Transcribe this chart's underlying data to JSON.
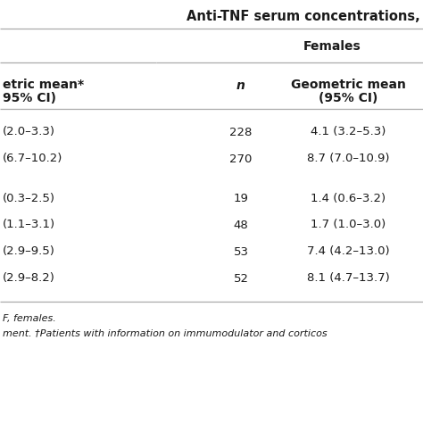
{
  "title": "Anti-TNF serum concentrations,",
  "col_header_top": "Females",
  "col1_hdr_line1": "etric mean*",
  "col1_hdr_line2": "95% CI)",
  "col2_hdr": "n",
  "col3_hdr_line1": "Geometric mean",
  "col3_hdr_line2": "(95% CI)",
  "rows": [
    [
      "(2.0–3.3)",
      "228",
      "4.1 (3.2–5.3)"
    ],
    [
      "(6.7–10.2)",
      "270",
      "8.7 (7.0–10.9)"
    ],
    [
      "",
      "",
      ""
    ],
    [
      "(0.3–2.5)",
      "19",
      "1.4 (0.6–3.2)"
    ],
    [
      "(1.1–3.1)",
      "48",
      "1.7 (1.0–3.0)"
    ],
    [
      "(2.9–9.5)",
      "53",
      "7.4 (4.2–13.0)"
    ],
    [
      "(2.9–8.2)",
      "52",
      "8.1 (4.7–13.7)"
    ]
  ],
  "footer1": "F, females.",
  "footer2": "ment. †Patients with information on immumodulator and corticos",
  "bg_color": "#ffffff",
  "text_color": "#1a1a1a",
  "line_color": "#aaaaaa",
  "body_fontsize": 9.5,
  "header_fontsize": 10.0,
  "title_fontsize": 10.5,
  "footer_fontsize": 8.0
}
